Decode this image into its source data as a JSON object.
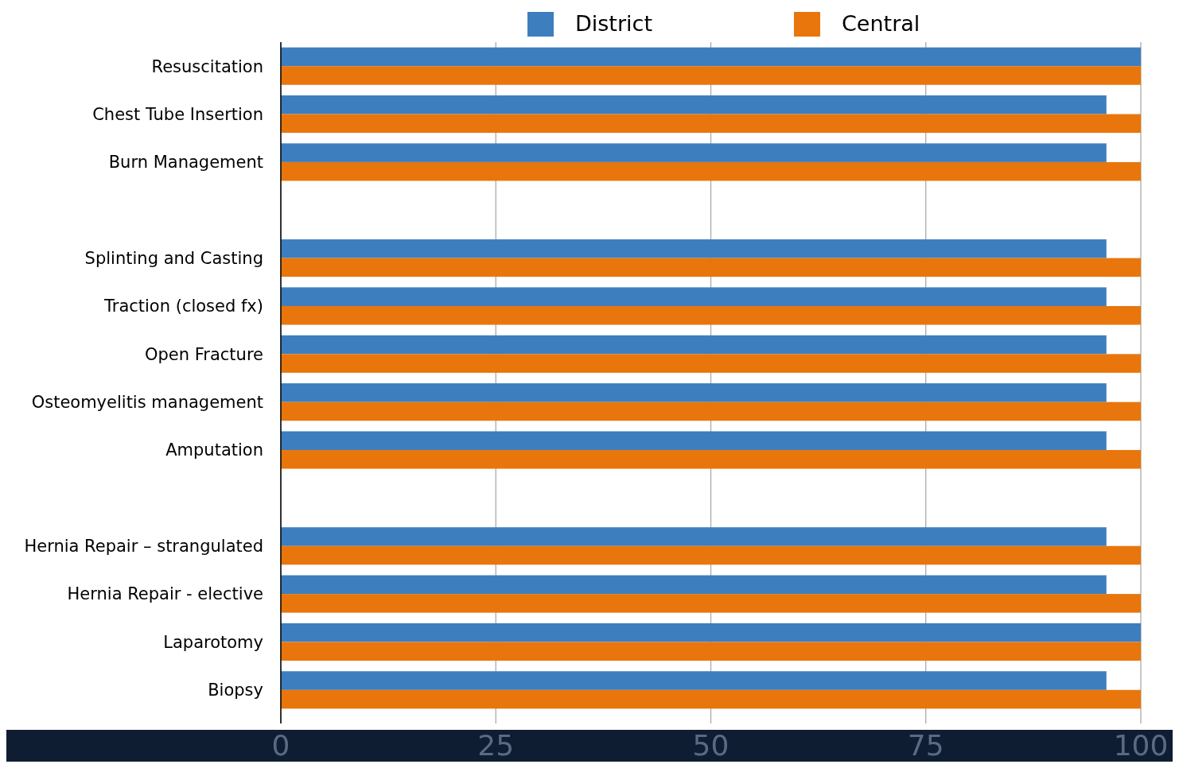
{
  "chart_data": {
    "type": "bar",
    "orientation": "horizontal",
    "categories": [
      "Resuscitation",
      "Chest Tube Insertion",
      "Burn Management",
      null,
      "Splinting and Casting",
      "Traction (closed fx)",
      "Open Fracture",
      "Osteomyelitis management",
      "Amputation",
      null,
      "Hernia Repair – strangulated",
      "Hernia Repair - elective",
      "Laparotomy",
      "Biopsy"
    ],
    "series": [
      {
        "name": "District",
        "color": "#3d7ebf",
        "values": [
          100,
          96,
          96,
          null,
          96,
          96,
          96,
          96,
          96,
          null,
          96,
          96,
          100,
          96
        ]
      },
      {
        "name": "Central",
        "color": "#e8760c",
        "values": [
          100,
          100,
          100,
          null,
          100,
          100,
          100,
          100,
          100,
          null,
          100,
          100,
          100,
          100
        ]
      }
    ],
    "xlim": [
      0,
      100
    ],
    "xticks": [
      0,
      25,
      50,
      75,
      100
    ],
    "grid": "x",
    "legend": "top"
  }
}
